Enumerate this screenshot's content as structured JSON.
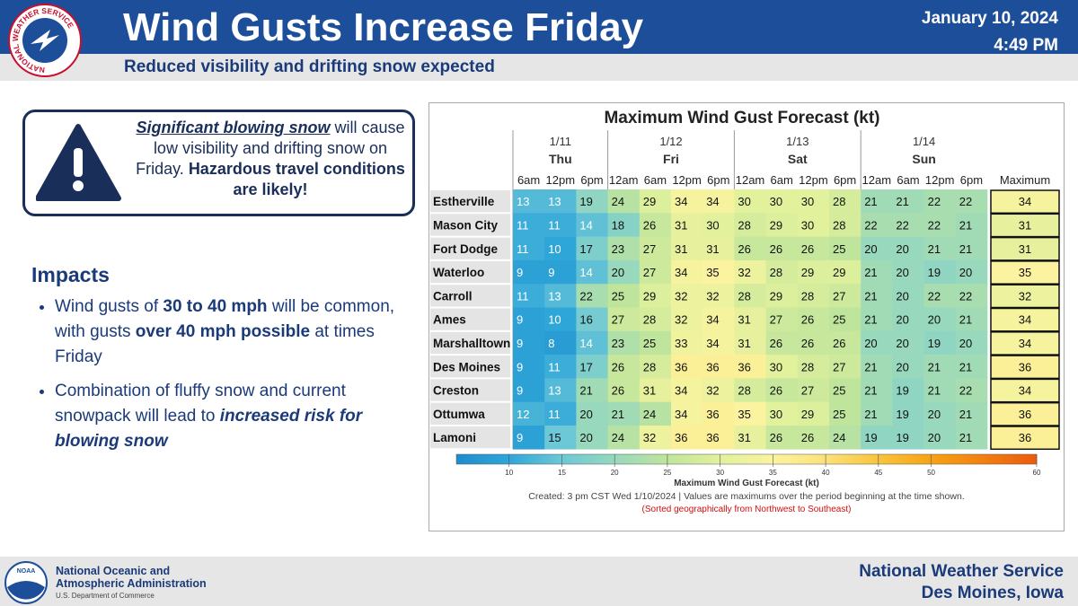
{
  "header": {
    "logo_text": "NATIONAL WEATHER SERVICE",
    "title": "Wind Gusts Increase Friday",
    "subtitle": "Reduced visibility and drifting snow expected",
    "date": "January 10, 2024",
    "time": "4:49 PM"
  },
  "warning": {
    "parts": [
      "Significant blowing snow",
      " will cause low visibility and drifting snow on Friday. ",
      "Hazardous travel conditions are likely!"
    ]
  },
  "impacts": {
    "heading": "Impacts",
    "bullets": [
      [
        "Wind gusts of ",
        "30 to 40 mph",
        " will be common, with gusts ",
        "over 40 mph possible",
        " at times Friday"
      ],
      [
        "Combination of fluffy snow and current snowpack will lead to ",
        "increased risk for blowing snow"
      ]
    ]
  },
  "table": {
    "title": "Maximum Wind Gust Forecast (kt)",
    "max_header": "Maximum",
    "days": [
      {
        "date": "1/11",
        "day": "Thu",
        "times": [
          "6am",
          "12pm",
          "6pm"
        ]
      },
      {
        "date": "1/12",
        "day": "Fri",
        "times": [
          "12am",
          "6am",
          "12pm",
          "6pm"
        ]
      },
      {
        "date": "1/13",
        "day": "Sat",
        "times": [
          "12am",
          "6am",
          "12pm",
          "6pm"
        ]
      },
      {
        "date": "1/14",
        "day": "Sun",
        "times": [
          "12am",
          "6am",
          "12pm",
          "6pm"
        ]
      }
    ],
    "rows": [
      {
        "name": "Estherville",
        "values": [
          13,
          13,
          19,
          24,
          29,
          34,
          34,
          30,
          30,
          30,
          28,
          21,
          21,
          22,
          22
        ],
        "max": 34
      },
      {
        "name": "Mason City",
        "values": [
          11,
          11,
          14,
          18,
          26,
          31,
          30,
          28,
          29,
          30,
          28,
          22,
          22,
          22,
          21
        ],
        "max": 31
      },
      {
        "name": "Fort Dodge",
        "values": [
          11,
          10,
          17,
          23,
          27,
          31,
          31,
          26,
          26,
          26,
          25,
          20,
          20,
          21,
          21
        ],
        "max": 31
      },
      {
        "name": "Waterloo",
        "values": [
          9,
          9,
          14,
          20,
          27,
          34,
          35,
          32,
          28,
          29,
          29,
          21,
          20,
          19,
          20
        ],
        "max": 35
      },
      {
        "name": "Carroll",
        "values": [
          11,
          13,
          22,
          25,
          29,
          32,
          32,
          28,
          29,
          28,
          27,
          21,
          20,
          22,
          22
        ],
        "max": 32
      },
      {
        "name": "Ames",
        "values": [
          9,
          10,
          16,
          27,
          28,
          32,
          34,
          31,
          27,
          26,
          25,
          21,
          20,
          20,
          21
        ],
        "max": 34
      },
      {
        "name": "Marshalltown",
        "values": [
          9,
          8,
          14,
          23,
          25,
          33,
          34,
          31,
          26,
          26,
          26,
          20,
          20,
          19,
          20
        ],
        "max": 34
      },
      {
        "name": "Des Moines",
        "values": [
          9,
          11,
          17,
          26,
          28,
          36,
          36,
          36,
          30,
          28,
          27,
          21,
          20,
          21,
          21
        ],
        "max": 36
      },
      {
        "name": "Creston",
        "values": [
          9,
          13,
          21,
          26,
          31,
          34,
          32,
          28,
          26,
          27,
          25,
          21,
          19,
          21,
          22
        ],
        "max": 34
      },
      {
        "name": "Ottumwa",
        "values": [
          12,
          11,
          20,
          21,
          24,
          34,
          36,
          35,
          30,
          29,
          25,
          21,
          19,
          20,
          21
        ],
        "max": 36
      },
      {
        "name": "Lamoni",
        "values": [
          9,
          15,
          20,
          24,
          32,
          36,
          36,
          31,
          26,
          26,
          24,
          19,
          19,
          20,
          21
        ],
        "max": 36
      }
    ],
    "colorbar": {
      "lim": [
        5,
        60
      ],
      "ticks": [
        10,
        15,
        20,
        25,
        30,
        35,
        40,
        45,
        50,
        60
      ],
      "colors": [
        "#1f8ccc",
        "#2fa6d8",
        "#6cc8d6",
        "#98d8bd",
        "#bfe59c",
        "#e2f19c",
        "#fbf3a0",
        "#fbe27a",
        "#f9c43c",
        "#f6a313",
        "#f27f10",
        "#ec5a0e"
      ],
      "label": "Maximum Wind Gust Forecast (kt)"
    },
    "created": "Created: 3 pm CST Wed 1/10/2024  |  Values are maximums over the period beginning at the time shown.",
    "sorted": "(Sorted geographically from Northwest to Southeast)"
  },
  "footer": {
    "noaa_logo": "NOAA",
    "agency_line1": "National Oceanic and",
    "agency_line2": "Atmospheric Administration",
    "department": "U.S. Department of Commerce",
    "office_line1": "National Weather Service",
    "office_line2": "Des Moines, Iowa"
  }
}
